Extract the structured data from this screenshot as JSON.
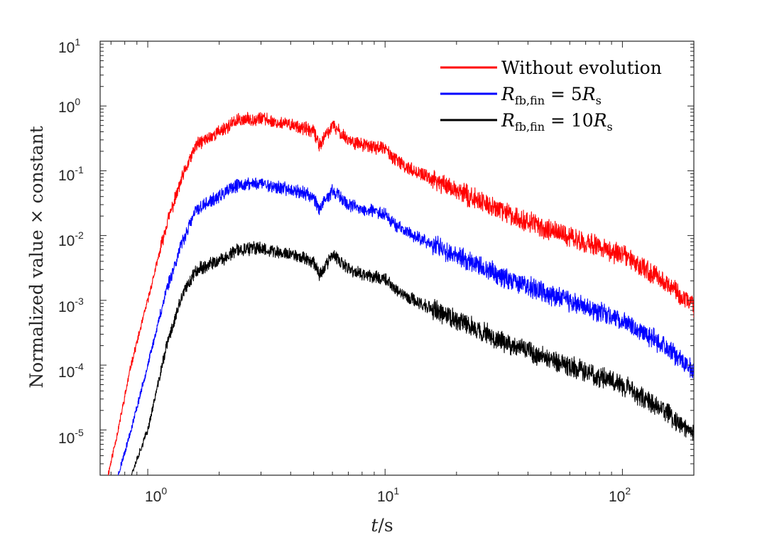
{
  "chart_data": {
    "type": "line",
    "xscale": "log",
    "yscale": "log",
    "xlim": [
      0.63,
      200
    ],
    "ylim": [
      2e-06,
      10
    ],
    "xlabel": {
      "var": "t",
      "unit": "/s"
    },
    "ylabel": "Normalized value × constant",
    "grid": false,
    "legend_position": "top-right",
    "x_ticks": [
      {
        "base": "10",
        "exp": "0"
      },
      {
        "base": "10",
        "exp": "1"
      },
      {
        "base": "10",
        "exp": "2"
      }
    ],
    "y_ticks": [
      {
        "base": "10",
        "exp": "1"
      },
      {
        "base": "10",
        "exp": "0"
      },
      {
        "base": "10",
        "exp": "-1"
      },
      {
        "base": "10",
        "exp": "-2"
      },
      {
        "base": "10",
        "exp": "-3"
      },
      {
        "base": "10",
        "exp": "-4"
      },
      {
        "base": "10",
        "exp": "-5"
      }
    ],
    "series": [
      {
        "name": "Without evolution",
        "color": "#ff0000",
        "noise_seed": 11,
        "x": [
          0.68,
          0.75,
          0.85,
          1.0,
          1.2,
          1.4,
          1.6,
          2.0,
          2.4,
          3.0,
          3.5,
          4.2,
          5.0,
          5.3,
          6.0,
          7.0,
          8.0,
          10.0,
          11.0,
          12.0,
          15.0,
          20.0,
          30.0,
          50.0,
          100.0,
          150.0,
          200.0
        ],
        "values": [
          2e-06,
          1e-05,
          0.0001,
          0.001,
          0.015,
          0.08,
          0.25,
          0.4,
          0.6,
          0.65,
          0.55,
          0.5,
          0.4,
          0.25,
          0.5,
          0.3,
          0.25,
          0.22,
          0.15,
          0.12,
          0.08,
          0.05,
          0.025,
          0.012,
          0.005,
          0.002,
          0.0008
        ]
      },
      {
        "name": "R_fb,fin = 5R_s",
        "color": "#0000ff",
        "noise_seed": 23,
        "x": [
          0.75,
          0.85,
          1.0,
          1.2,
          1.4,
          1.6,
          2.0,
          2.4,
          3.0,
          3.5,
          4.2,
          5.0,
          5.3,
          6.0,
          7.0,
          8.0,
          10.0,
          11.0,
          12.0,
          15.0,
          20.0,
          30.0,
          50.0,
          100.0,
          150.0,
          200.0
        ],
        "values": [
          2e-06,
          1e-05,
          0.0001,
          0.0015,
          0.008,
          0.025,
          0.04,
          0.06,
          0.065,
          0.055,
          0.05,
          0.04,
          0.025,
          0.05,
          0.03,
          0.025,
          0.022,
          0.015,
          0.012,
          0.008,
          0.005,
          0.0025,
          0.0012,
          0.0005,
          0.0002,
          8e-05
        ]
      },
      {
        "name": "R_fb,fin = 10R_s",
        "color": "#000000",
        "noise_seed": 37,
        "x": [
          0.85,
          1.0,
          1.2,
          1.4,
          1.6,
          2.0,
          2.4,
          3.0,
          3.5,
          4.2,
          5.0,
          5.3,
          6.0,
          7.0,
          8.0,
          10.0,
          11.0,
          12.0,
          15.0,
          20.0,
          30.0,
          50.0,
          100.0,
          150.0,
          200.0
        ],
        "values": [
          2e-06,
          1e-05,
          0.0002,
          0.0012,
          0.003,
          0.004,
          0.006,
          0.0065,
          0.0055,
          0.005,
          0.004,
          0.0025,
          0.005,
          0.003,
          0.0025,
          0.0022,
          0.0015,
          0.0012,
          0.0008,
          0.0005,
          0.00025,
          0.00012,
          5e-05,
          2e-05,
          8e-06
        ]
      }
    ],
    "legend": [
      {
        "color": "#ff0000",
        "text": "Without evolution",
        "var": "",
        "sub": "",
        "op": "",
        "coef": "",
        "var2": "",
        "sub2": ""
      },
      {
        "color": "#0000ff",
        "text": "",
        "var": "R",
        "sub": "fb,fin",
        "op": " = ",
        "coef": "5",
        "var2": "R",
        "sub2": "s"
      },
      {
        "color": "#000000",
        "text": "",
        "var": "R",
        "sub": "fb,fin",
        "op": " = ",
        "coef": "10",
        "var2": "R",
        "sub2": "s"
      }
    ]
  }
}
